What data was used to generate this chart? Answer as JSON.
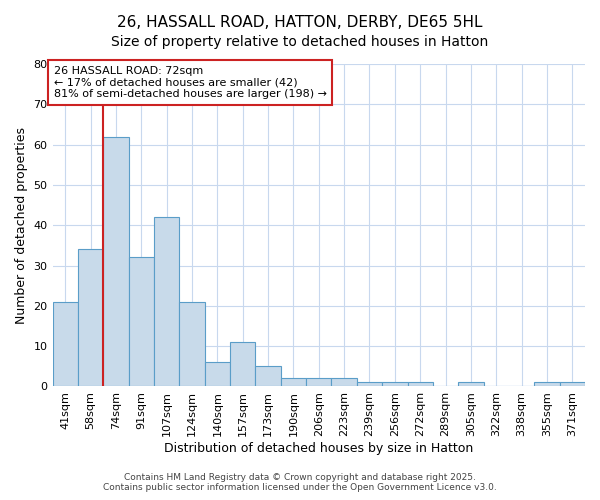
{
  "title1": "26, HASSALL ROAD, HATTON, DERBY, DE65 5HL",
  "title2": "Size of property relative to detached houses in Hatton",
  "xlabel": "Distribution of detached houses by size in Hatton",
  "ylabel": "Number of detached properties",
  "categories": [
    "41sqm",
    "58sqm",
    "74sqm",
    "91sqm",
    "107sqm",
    "124sqm",
    "140sqm",
    "157sqm",
    "173sqm",
    "190sqm",
    "206sqm",
    "223sqm",
    "239sqm",
    "256sqm",
    "272sqm",
    "289sqm",
    "305sqm",
    "322sqm",
    "338sqm",
    "355sqm",
    "371sqm"
  ],
  "values": [
    21,
    34,
    62,
    32,
    42,
    21,
    6,
    11,
    5,
    2,
    2,
    2,
    1,
    1,
    1,
    0,
    1,
    0,
    0,
    1,
    1
  ],
  "bar_color": "#c8daea",
  "bar_edge_color": "#5a9dc8",
  "red_line_index": 2,
  "ylim": [
    0,
    80
  ],
  "yticks": [
    0,
    10,
    20,
    30,
    40,
    50,
    60,
    70,
    80
  ],
  "annotation_text": "26 HASSALL ROAD: 72sqm\n← 17% of detached houses are smaller (42)\n81% of semi-detached houses are larger (198) →",
  "annotation_box_color": "#ffffff",
  "annotation_box_edge": "#cc2222",
  "bg_color": "#ffffff",
  "plot_bg_color": "#ffffff",
  "grid_color": "#c8d8ee",
  "title_fontsize": 11,
  "subtitle_fontsize": 10,
  "axis_fontsize": 9,
  "tick_fontsize": 8,
  "footer1": "Contains HM Land Registry data © Crown copyright and database right 2025.",
  "footer2": "Contains public sector information licensed under the Open Government Licence v3.0."
}
